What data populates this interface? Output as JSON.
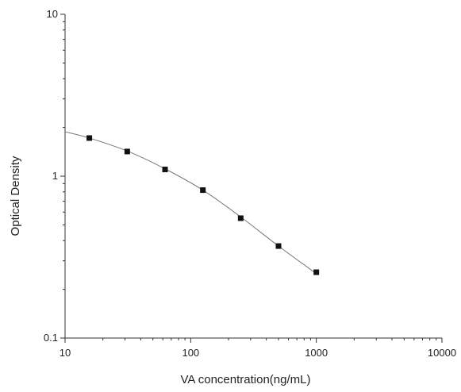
{
  "chart_data": {
    "type": "scatter",
    "title": "",
    "xlabel": "VA concentration(ng/mL)",
    "ylabel": "Optical Density",
    "x_scale": "log",
    "y_scale": "log",
    "xlim": [
      10,
      10000
    ],
    "ylim": [
      0.1,
      10
    ],
    "x_ticks": [
      "10",
      "100",
      "1000",
      "10000"
    ],
    "y_ticks": [
      "0.1",
      "1",
      "10"
    ],
    "grid": false,
    "legend": "none",
    "series": [
      {
        "kind": "points",
        "marker": "square",
        "x": [
          15.6,
          31.25,
          62.5,
          125,
          250,
          500,
          1000
        ],
        "y": [
          1.72,
          1.42,
          1.1,
          0.82,
          0.55,
          0.37,
          0.255
        ]
      },
      {
        "kind": "fit-curve",
        "x": [
          10,
          15.6,
          31.25,
          62.5,
          125,
          250,
          500,
          1000
        ],
        "y": [
          1.88,
          1.72,
          1.43,
          1.11,
          0.82,
          0.56,
          0.37,
          0.25
        ]
      }
    ],
    "colors": {
      "axis": "#333333",
      "marker": "#111111",
      "curve": "#777777"
    }
  }
}
